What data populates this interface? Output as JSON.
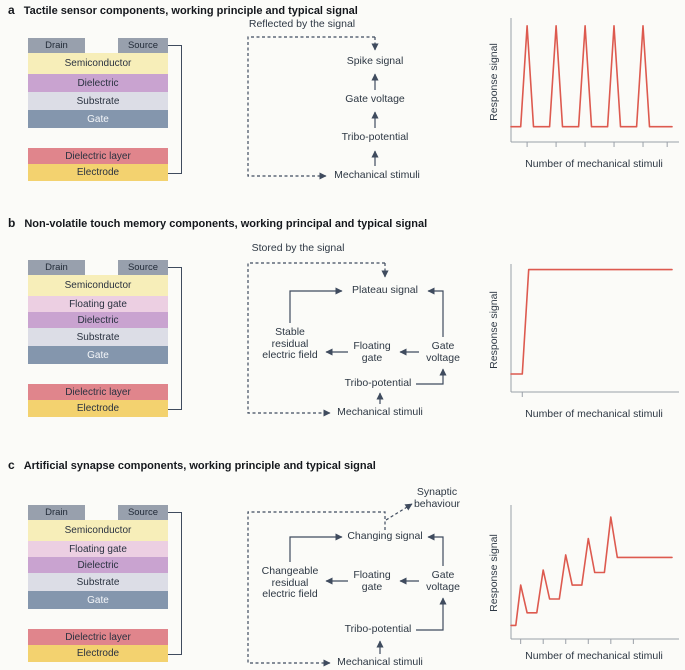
{
  "colors": {
    "background": "#fbfbf8",
    "arrow": "#3f4b5e",
    "signal_line": "#dd5a4f",
    "axis": "#9aa0a8",
    "layer_contact": "#98a0ad",
    "layer_semiconductor": "#f7eeb9",
    "layer_floating_gate": "#eccfe2",
    "layer_dielectric": "#c9a3d0",
    "layer_substrate": "#dcdde6",
    "layer_gate": "#8496ad",
    "layer_dielectric_layer": "#e0858c",
    "layer_electrode": "#f3d26f"
  },
  "panels": [
    {
      "label": "a",
      "title": "Tactile sensor components, working principle and typical signal",
      "stack": {
        "drain": "Drain",
        "source": "Source",
        "layers": [
          "Semiconductor",
          "Dielectric",
          "Substrate",
          "Gate"
        ],
        "bottom": [
          "Dielectric layer",
          "Electrode"
        ]
      },
      "flow": {
        "loop_label": "Reflected by the signal",
        "signal": "Spike signal",
        "gate_voltage": "Gate voltage",
        "tribo": "Tribo-potential",
        "stimuli": "Mechanical stimuli"
      }
    },
    {
      "label": "b",
      "title": "Non-volatile touch memory components, working principal and typical signal",
      "stack": {
        "drain": "Drain",
        "source": "Source",
        "layers": [
          "Semiconductor",
          "Floating gate",
          "Dielectric",
          "Substrate",
          "Gate"
        ],
        "bottom": [
          "Dielectric layer",
          "Electrode"
        ]
      },
      "flow": {
        "loop_label": "Stored by the signal",
        "signal": "Plateau signal",
        "residual": "Stable residual electric field",
        "floating_gate": "Floating gate",
        "gate_voltage": "Gate voltage",
        "tribo": "Tribo-potential",
        "stimuli": "Mechanical stimuli"
      }
    },
    {
      "label": "c",
      "title": "Artificial synapse components, working principle and typical signal",
      "stack": {
        "drain": "Drain",
        "source": "Source",
        "layers": [
          "Semiconductor",
          "Floating gate",
          "Dielectric",
          "Substrate",
          "Gate"
        ],
        "bottom": [
          "Dielectric layer",
          "Electrode"
        ]
      },
      "flow": {
        "behaviour": "Synaptic behaviour",
        "signal": "Changing signal",
        "residual": "Changeable residual electric field",
        "floating_gate": "Floating gate",
        "gate_voltage": "Gate voltage",
        "tribo": "Tribo-potential",
        "stimuli": "Mechanical stimuli"
      }
    }
  ],
  "chart_data": [
    {
      "panel": "a",
      "type": "line",
      "name": "Tactile sensor typical signal (spike train)",
      "xlabel": "Number of mechanical stimuli",
      "ylabel": "Response signal",
      "line_color": "#dd5a4f",
      "axis_color": "#9aa0a8",
      "x_ticks": [
        10,
        28,
        46,
        64,
        82,
        97
      ],
      "points": [
        [
          0,
          8
        ],
        [
          6,
          8
        ],
        [
          10,
          95
        ],
        [
          14,
          8
        ],
        [
          24,
          8
        ],
        [
          28,
          95
        ],
        [
          32,
          8
        ],
        [
          42,
          8
        ],
        [
          46,
          95
        ],
        [
          50,
          8
        ],
        [
          60,
          8
        ],
        [
          64,
          95
        ],
        [
          68,
          8
        ],
        [
          78,
          8
        ],
        [
          82,
          95
        ],
        [
          86,
          8
        ],
        [
          100,
          8
        ]
      ]
    },
    {
      "panel": "b",
      "type": "line",
      "name": "Non-volatile touch memory typical signal (plateau)",
      "xlabel": "Number of mechanical stimuli",
      "ylabel": "Response signal",
      "line_color": "#dd5a4f",
      "axis_color": "#9aa0a8",
      "x_ticks": [
        7
      ],
      "points": [
        [
          0,
          10
        ],
        [
          7,
          10
        ],
        [
          11,
          97
        ],
        [
          100,
          97
        ]
      ]
    },
    {
      "panel": "c",
      "type": "line",
      "name": "Artificial synapse typical signal (potentiation spikes)",
      "xlabel": "Number of mechanical stimuli",
      "ylabel": "Response signal",
      "line_color": "#dd5a4f",
      "axis_color": "#9aa0a8",
      "x_ticks": [
        6,
        20,
        34,
        48,
        62,
        76
      ],
      "points": [
        [
          0,
          6
        ],
        [
          3,
          6
        ],
        [
          6,
          38
        ],
        [
          10,
          16
        ],
        [
          16,
          16
        ],
        [
          20,
          50
        ],
        [
          24,
          27
        ],
        [
          30,
          27
        ],
        [
          34,
          62
        ],
        [
          38,
          38
        ],
        [
          44,
          38
        ],
        [
          48,
          75
        ],
        [
          52,
          48
        ],
        [
          58,
          48
        ],
        [
          62,
          92
        ],
        [
          66,
          60
        ],
        [
          100,
          60
        ]
      ]
    }
  ]
}
